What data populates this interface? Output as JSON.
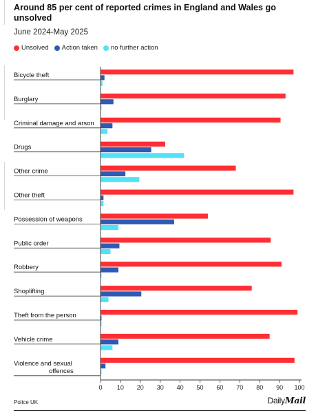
{
  "title": "Around 85 per cent of reported crimes in England and Wales go unsolved",
  "subtitle": "June 2024-May 2025",
  "source": "Police UK",
  "brand": {
    "part1": "Daily",
    "part2": "Mail"
  },
  "colors": {
    "unsolved": "#ff2e34",
    "action": "#2d5bb4",
    "nfa": "#4fe3f5"
  },
  "legend": [
    {
      "label": "Unsolved",
      "color": "#ff2e34"
    },
    {
      "label": "Action taken",
      "color": "#2d5bb4"
    },
    {
      "label": "no further action",
      "color": "#4fe3f5"
    }
  ],
  "chart_data": {
    "type": "bar",
    "orientation": "horizontal",
    "title": "Around 85 per cent of reported crimes in England and Wales go unsolved",
    "subtitle": "June 2024-May 2025",
    "categories": [
      "Bicycle theft",
      "Burglary",
      "Criminal damage and arson",
      "Drugs",
      "Other crime",
      "Other theft",
      "Possession of weapons",
      "Public order",
      "Robbery",
      "Shoplifting",
      "Theft from the person",
      "Vehicle crime",
      "Violence and sexual offences"
    ],
    "series": [
      {
        "name": "Unsolved",
        "values": [
          97,
          93,
          90.5,
          32.5,
          68,
          97,
          54,
          85.5,
          91,
          76,
          99,
          85,
          97.5
        ]
      },
      {
        "name": "Action taken",
        "values": [
          2,
          6.5,
          6,
          25.5,
          12.5,
          1.5,
          37,
          9.5,
          9,
          20.5,
          0.5,
          9,
          2.5
        ]
      },
      {
        "name": "no further action",
        "values": [
          1,
          0.5,
          3.5,
          42,
          19.5,
          1.5,
          9,
          5,
          0.5,
          4,
          0.5,
          6,
          0.5
        ]
      }
    ],
    "xlim": [
      0,
      100
    ],
    "xticks": [
      0,
      10,
      20,
      30,
      40,
      50,
      60,
      70,
      80,
      90,
      100
    ],
    "grid": false,
    "legend_position": "top-left"
  }
}
